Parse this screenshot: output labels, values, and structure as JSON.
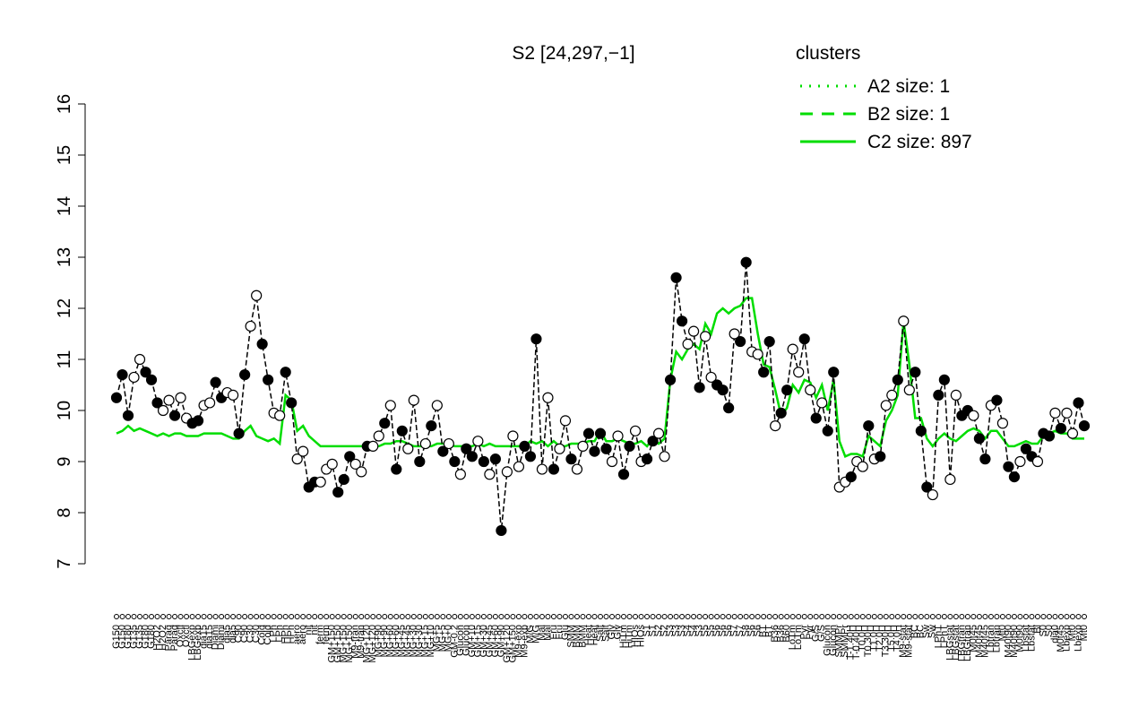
{
  "chart_data": {
    "type": "line",
    "title": "S2 [24,297,−1]",
    "ylim": [
      7,
      16
    ],
    "yticks": [
      7,
      8,
      9,
      10,
      11,
      12,
      13,
      14,
      15,
      16
    ],
    "color": "#000000",
    "categories": [
      "G150",
      "G150",
      "G180",
      "G135",
      "G135",
      "G180",
      "G180",
      "H2O2",
      "H2O2",
      "Paraq",
      "Paraq",
      "Oxctl",
      "Oxctl",
      "LBGexp",
      "LBGexp",
      "dia15",
      "dia15",
      "Diami",
      "Diami",
      "dia5",
      "dia5",
      "C90",
      "C90",
      "C30",
      "C30",
      "Cold",
      "Cold",
      "LPh",
      "LPh",
      "HPh",
      "HPh",
      "aero",
      "aero",
      "nit",
      "nit",
      "ferm",
      "ferm",
      "GM+150",
      "GM+150",
      "MG+150",
      "MG+150",
      "M9-tran",
      "M9-tran",
      "MG+120",
      "MG+120",
      "MG+90",
      "MG+90",
      "MG+60",
      "MG+60",
      "MG+45",
      "MG+45",
      "MG+30",
      "MG+30",
      "MG+15",
      "MG+10",
      "MG+5",
      "MG+5",
      "MG+0",
      "GM-0.2",
      "Glucon",
      "Glucon",
      "GM+10",
      "GM+15",
      "GM+30",
      "GM+45",
      "GM+60",
      "GM+90",
      "GM+120",
      "GM+150",
      "M9-exp",
      "M9-exp",
      "M/G",
      "M/G",
      "Mal",
      "Mal",
      "Fru",
      "Fru",
      "Glu",
      "SMM",
      "BMM",
      "BMM",
      "Heat",
      "Heat",
      "Salt",
      "Salt",
      "Gly",
      "Gly",
      "HiTm",
      "HiTm",
      "HIOs",
      "HIOs",
      "S1",
      "S1",
      "S2",
      "S2",
      "S3",
      "S3",
      "S3",
      "S4",
      "S4",
      "S3",
      "S5",
      "S5",
      "S6",
      "S6",
      "S6",
      "S7",
      "S7",
      "S8",
      "S6",
      "S6",
      "BT",
      "BT",
      "B36",
      "B36",
      "B60",
      "LoTm",
      "LoTm",
      "Pyr",
      "Pyr",
      "G/S",
      "G/S",
      "Glucon",
      "Glucon",
      "SMMPr",
      "SMMPr",
      "T-1.40H",
      "T-0.40H",
      "T0.0H",
      "T0.30H",
      "T1.0H",
      "T2.0H",
      "T3.30H",
      "T5.0H",
      "T4.0H",
      "M9-stat",
      "M9-stat",
      "BC",
      "BC",
      "Sw",
      "Sw",
      "LPhT",
      "LPhT",
      "LBGstat",
      "LBGstat",
      "LBGtran",
      "LBGtran",
      "M0t45",
      "M40t45",
      "M40t45",
      "Lbtran",
      "Lbtran",
      "Mt0",
      "M40t90",
      "M40t90",
      "M0t90",
      "Lbstat",
      "Lbstat",
      "Bl",
      "S0",
      "S0",
      "dia0",
      "M0t45",
      "Lbexp",
      "Mt0",
      "Lbexp",
      "Mt0"
    ],
    "values": [
      10.25,
      10.7,
      9.9,
      10.65,
      11.0,
      10.75,
      10.6,
      10.15,
      10.0,
      10.2,
      9.9,
      10.25,
      9.85,
      9.75,
      9.8,
      10.1,
      10.15,
      10.55,
      10.25,
      10.35,
      10.3,
      9.55,
      10.7,
      11.65,
      12.25,
      11.3,
      10.6,
      9.95,
      9.9,
      10.75,
      10.15,
      9.05,
      9.2,
      8.5,
      8.6,
      8.6,
      8.85,
      8.95,
      8.4,
      8.65,
      9.1,
      8.95,
      8.8,
      9.3,
      9.3,
      9.5,
      9.75,
      10.1,
      8.85,
      9.6,
      9.25,
      10.2,
      9.0,
      9.35,
      9.7,
      10.1,
      9.2,
      9.35,
      9.0,
      8.75,
      9.25,
      9.1,
      9.4,
      9.0,
      8.75,
      9.05,
      7.65,
      8.8,
      9.5,
      8.9,
      9.3,
      9.1,
      11.4,
      8.85,
      10.25,
      8.85,
      9.25,
      9.8,
      9.05,
      8.85,
      9.3,
      9.55,
      9.2,
      9.55,
      9.25,
      9.0,
      9.5,
      8.75,
      9.3,
      9.6,
      9.0,
      9.05,
      9.4,
      9.55,
      9.1,
      10.6,
      12.6,
      11.75,
      11.3,
      11.55,
      10.45,
      11.45,
      10.65,
      10.5,
      10.4,
      10.05,
      11.5,
      11.35,
      12.9,
      11.15,
      11.1,
      10.75,
      11.35,
      9.7,
      9.95,
      10.4,
      11.2,
      10.75,
      11.4,
      10.4,
      9.85,
      10.15,
      9.6,
      10.75,
      8.5,
      8.6,
      8.7,
      9.0,
      8.9,
      9.7,
      9.05,
      9.1,
      10.1,
      10.3,
      10.6,
      11.75,
      10.4,
      10.75,
      9.6,
      8.5,
      8.35,
      10.3,
      10.6,
      8.65,
      10.3,
      9.9,
      10.0,
      9.9,
      9.45,
      9.05,
      10.1,
      10.2,
      9.75,
      8.9,
      8.7,
      9.0,
      9.25,
      9.1,
      9.0,
      9.55,
      9.5,
      9.95,
      9.65,
      9.95,
      9.55,
      10.15,
      9.7
    ],
    "filled": [
      true,
      true,
      true,
      false,
      false,
      true,
      true,
      true,
      false,
      false,
      true,
      false,
      false,
      true,
      true,
      false,
      false,
      true,
      true,
      false,
      false,
      true,
      true,
      false,
      false,
      true,
      true,
      false,
      false,
      true,
      true,
      false,
      false,
      true,
      true,
      false,
      false,
      false,
      true,
      true,
      true,
      false,
      false,
      true,
      false,
      false,
      true,
      false,
      true,
      true,
      false,
      false,
      true,
      false,
      true,
      false,
      true,
      false,
      true,
      false,
      true,
      true,
      false,
      true,
      false,
      true,
      true,
      false,
      false,
      false,
      true,
      true,
      true,
      false,
      false,
      true,
      false,
      false,
      true,
      false,
      false,
      true,
      true,
      true,
      true,
      false,
      false,
      true,
      true,
      false,
      false,
      true,
      true,
      false,
      false,
      true,
      true,
      true,
      false,
      false,
      true,
      false,
      false,
      true,
      true,
      true,
      false,
      true,
      true,
      false,
      false,
      true,
      true,
      false,
      true,
      true,
      false,
      false,
      true,
      false,
      true,
      false,
      true,
      true,
      false,
      false,
      true,
      false,
      false,
      true,
      false,
      true,
      false,
      false,
      true,
      false,
      false,
      true,
      true,
      true,
      false,
      true,
      true,
      false,
      false,
      true,
      true,
      false,
      true,
      true,
      false,
      true,
      false,
      true,
      true,
      false,
      true,
      true,
      false,
      true,
      true,
      false,
      true,
      false,
      false,
      true,
      true
    ],
    "mean_line": {
      "color": "#00dd00",
      "values": [
        9.55,
        9.6,
        9.7,
        9.6,
        9.65,
        9.6,
        9.55,
        9.5,
        9.55,
        9.5,
        9.55,
        9.55,
        9.5,
        9.5,
        9.5,
        9.55,
        9.55,
        9.55,
        9.55,
        9.5,
        9.45,
        9.45,
        9.6,
        9.7,
        9.5,
        9.45,
        9.4,
        9.45,
        9.35,
        10.3,
        10.2,
        9.6,
        9.7,
        9.5,
        9.4,
        9.3,
        9.3,
        9.3,
        9.3,
        9.3,
        9.3,
        9.3,
        9.3,
        9.3,
        9.3,
        9.3,
        9.35,
        9.35,
        9.4,
        9.4,
        9.35,
        9.3,
        9.3,
        9.3,
        9.3,
        9.35,
        9.35,
        9.35,
        9.3,
        9.3,
        9.3,
        9.3,
        9.35,
        9.3,
        9.35,
        9.3,
        9.3,
        9.3,
        9.3,
        9.3,
        9.3,
        9.4,
        9.35,
        9.4,
        9.3,
        9.4,
        9.3,
        9.3,
        9.35,
        9.35,
        9.35,
        9.4,
        9.4,
        9.6,
        9.4,
        9.4,
        9.45,
        9.4,
        9.35,
        9.35,
        9.4,
        9.3,
        9.45,
        9.35,
        9.45,
        10.6,
        11.15,
        11.0,
        11.2,
        11.3,
        11.2,
        11.7,
        11.5,
        11.9,
        12.0,
        11.9,
        12.0,
        12.05,
        12.2,
        12.2,
        11.5,
        10.9,
        10.85,
        10.4,
        9.9,
        10.05,
        10.5,
        10.35,
        10.6,
        10.55,
        10.25,
        10.5,
        10.0,
        10.6,
        9.4,
        9.1,
        9.15,
        9.15,
        9.1,
        9.5,
        9.4,
        9.3,
        9.8,
        10.0,
        10.3,
        11.75,
        10.9,
        9.85,
        9.85,
        9.45,
        9.3,
        9.45,
        9.55,
        9.45,
        9.4,
        9.5,
        9.6,
        9.65,
        9.6,
        9.45,
        9.6,
        9.6,
        9.45,
        9.3,
        9.3,
        9.35,
        9.4,
        9.35,
        9.35,
        9.5,
        9.55,
        9.6,
        9.55,
        9.55,
        9.45,
        9.45,
        9.45
      ]
    },
    "legend": {
      "title": "clusters",
      "color": "#00dd00",
      "entries": [
        {
          "label": "A2 size: 1",
          "dash": "dotted"
        },
        {
          "label": "B2 size: 1",
          "dash": "dashed"
        },
        {
          "label": "C2 size: 897",
          "dash": "solid"
        }
      ]
    }
  }
}
